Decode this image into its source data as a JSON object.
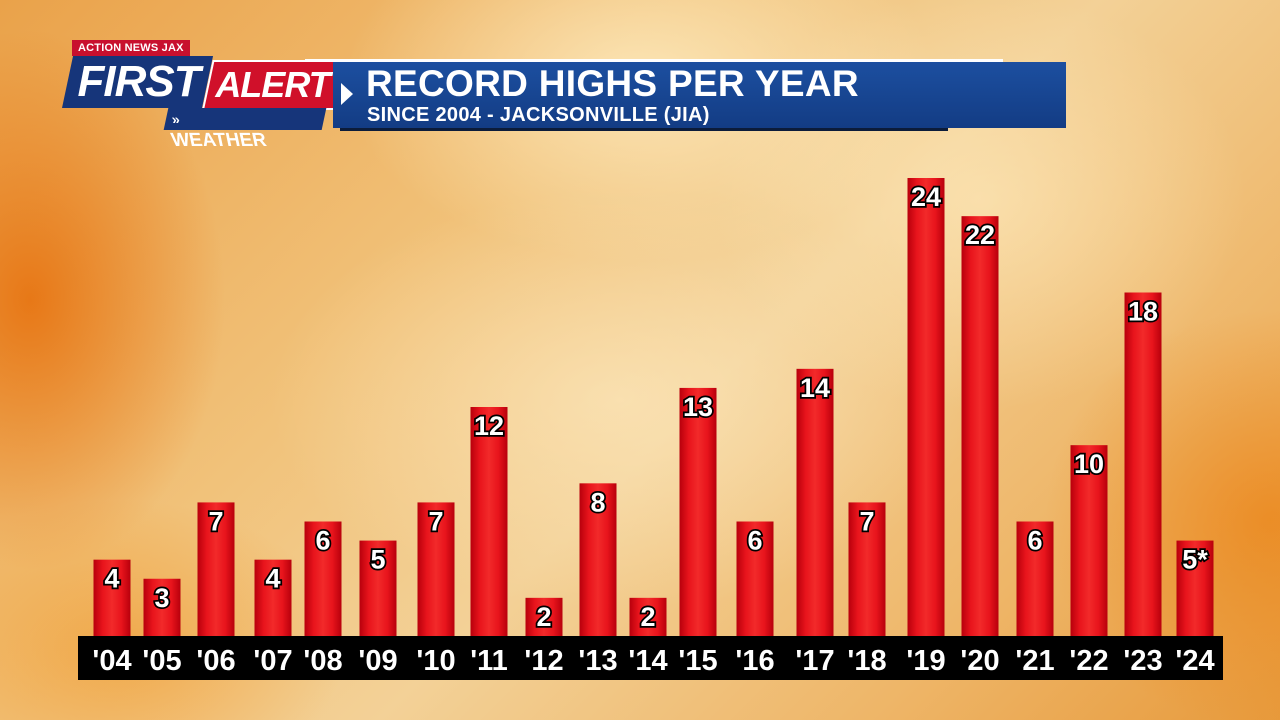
{
  "logo": {
    "station": "ACTION NEWS JAX",
    "first": "FIRST",
    "alert": "ALERT",
    "weather": "WEATHER",
    "chevron": "»"
  },
  "header": {
    "title": "RECORD HIGHS PER YEAR",
    "subtitle": "SINCE 2004 - JACKSONVILLE (JIA)"
  },
  "colors": {
    "bar": "#e0101a",
    "axis_strip": "#000000",
    "header_blue": "#16357a",
    "alert_red": "#d0102a"
  },
  "chart_data": {
    "type": "bar",
    "title": "RECORD HIGHS PER YEAR",
    "subtitle": "SINCE 2004 - JACKSONVILLE (JIA)",
    "xlabel": "",
    "ylabel": "",
    "categories": [
      "'04",
      "'05",
      "'06",
      "'07",
      "'08",
      "'09",
      "'10",
      "'11",
      "'12",
      "'13",
      "'14",
      "'15",
      "'16",
      "'17",
      "'18",
      "'19",
      "'20",
      "'21",
      "'22",
      "'23",
      "'24"
    ],
    "values": [
      4,
      3,
      7,
      4,
      6,
      5,
      7,
      12,
      2,
      8,
      2,
      13,
      6,
      14,
      7,
      24,
      22,
      6,
      10,
      18,
      5
    ],
    "value_labels": [
      "4",
      "3",
      "7",
      "4",
      "6",
      "5",
      "7",
      "12",
      "2",
      "8",
      "2",
      "13",
      "6",
      "14",
      "7",
      "24",
      "22",
      "6",
      "10",
      "18",
      "5*"
    ],
    "ylim": [
      0,
      24
    ],
    "grid": false,
    "legend": "none"
  }
}
